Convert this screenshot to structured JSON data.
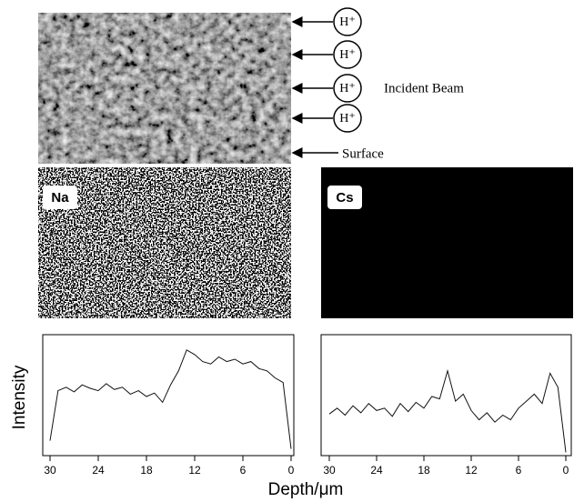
{
  "figure": {
    "beam_labels": [
      "H⁺",
      "H⁺",
      "H⁺",
      "H⁺"
    ],
    "incident_beam": "Incident Beam",
    "surface": "Surface",
    "map_labels": [
      "Na",
      "Cs"
    ],
    "y_label": "Intensity",
    "x_label": "Depth/μm"
  },
  "chart_data": [
    {
      "type": "line",
      "x": [
        30,
        29,
        28,
        27,
        26,
        25,
        24,
        23,
        22,
        21,
        20,
        19,
        18,
        17,
        16,
        15,
        14,
        13,
        12,
        11,
        10,
        9,
        8,
        7,
        6,
        5,
        4,
        3,
        2,
        1,
        0
      ],
      "values": [
        12,
        55,
        58,
        54,
        60,
        57,
        55,
        61,
        56,
        58,
        52,
        55,
        50,
        53,
        45,
        60,
        72,
        90,
        86,
        80,
        78,
        84,
        80,
        82,
        78,
        80,
        74,
        72,
        66,
        62,
        5
      ],
      "color": "#111111",
      "xlim": [
        30,
        0
      ],
      "ylim": [
        0,
        100
      ],
      "xticks": [
        30,
        24,
        18,
        12,
        6,
        0
      ]
    },
    {
      "type": "line",
      "x": [
        30,
        29,
        28,
        27,
        26,
        25,
        24,
        23,
        22,
        21,
        20,
        19,
        18,
        17,
        16,
        15,
        14,
        13,
        12,
        11,
        10,
        9,
        8,
        7,
        6,
        5,
        4,
        3,
        2,
        1,
        0
      ],
      "values": [
        35,
        40,
        34,
        42,
        36,
        44,
        38,
        40,
        33,
        44,
        37,
        45,
        40,
        50,
        48,
        72,
        46,
        52,
        38,
        30,
        36,
        28,
        34,
        30,
        40,
        46,
        52,
        44,
        70,
        58,
        2
      ],
      "color": "#111111",
      "xlim": [
        30,
        0
      ],
      "ylim": [
        0,
        100
      ],
      "xticks": [
        30,
        24,
        18,
        12,
        6,
        0
      ]
    }
  ]
}
